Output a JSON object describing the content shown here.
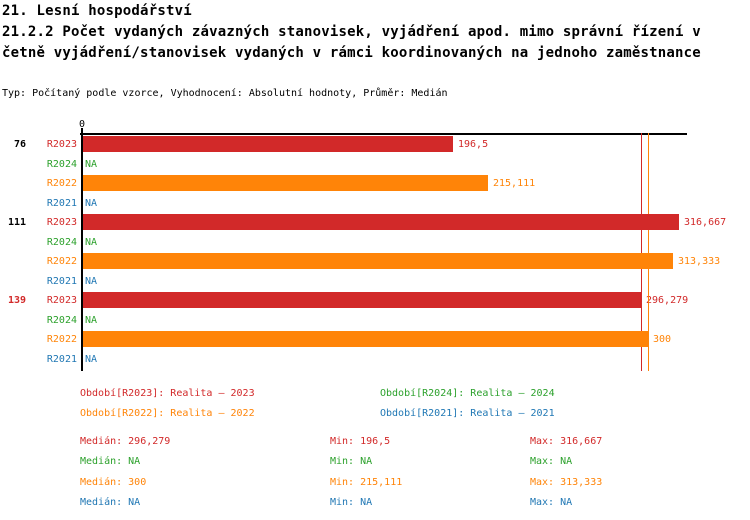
{
  "header": {
    "title_line1": "21. Lesní hospodářství",
    "title_line2": "21.2.2 Počet vydaných závazných stanovisek, vyjádření apod. mimo správní řízení v",
    "title_line3": "četně vyjádření/stanovisek vydaných v rámci koordinovaných na jednoho zaměstnance",
    "subtitle": "Typ: Počítaný podle vzorce, Vyhodnocení: Absolutní hodnoty, Průměr: Medián"
  },
  "chart_data": {
    "type": "bar",
    "orientation": "horizontal",
    "x_axis": {
      "zero_label": "0",
      "min": 0,
      "max": 321,
      "gridlines": false
    },
    "na_label": "NA",
    "series_colors": {
      "R2023": "#d22929",
      "R2024": "#2ca12c",
      "R2022": "#ff8408",
      "R2021": "#1f77b4"
    },
    "groups": [
      {
        "label": "76",
        "label_color": "#000000",
        "rows": [
          {
            "series": "R2023",
            "value": 196.5,
            "value_label": "196,5"
          },
          {
            "series": "R2024",
            "value": null,
            "value_label": "NA"
          },
          {
            "series": "R2022",
            "value": 215.111,
            "value_label": "215,111"
          },
          {
            "series": "R2021",
            "value": null,
            "value_label": "NA"
          }
        ]
      },
      {
        "label": "111",
        "label_color": "#000000",
        "rows": [
          {
            "series": "R2023",
            "value": 316.667,
            "value_label": "316,667"
          },
          {
            "series": "R2024",
            "value": null,
            "value_label": "NA"
          },
          {
            "series": "R2022",
            "value": 313.333,
            "value_label": "313,333"
          },
          {
            "series": "R2021",
            "value": null,
            "value_label": "NA"
          }
        ]
      },
      {
        "label": "139",
        "label_color": "#d22929",
        "rows": [
          {
            "series": "R2023",
            "value": 296.279,
            "value_label": "296,279"
          },
          {
            "series": "R2024",
            "value": null,
            "value_label": "NA"
          },
          {
            "series": "R2022",
            "value": 300,
            "value_label": "300"
          },
          {
            "series": "R2021",
            "value": null,
            "value_label": "NA"
          }
        ]
      }
    ],
    "median_lines": [
      {
        "series": "R2023",
        "value": 296.279
      },
      {
        "series": "R2022",
        "value": 300
      }
    ]
  },
  "legend": {
    "items": [
      {
        "series": "R2023",
        "text": "Období[R2023]: Realita – 2023"
      },
      {
        "series": "R2024",
        "text": "Období[R2024]: Realita – 2024"
      },
      {
        "series": "R2022",
        "text": "Období[R2022]: Realita – 2022"
      },
      {
        "series": "R2021",
        "text": "Období[R2021]: Realita – 2021"
      }
    ]
  },
  "stats": {
    "rows": [
      {
        "series": "R2023",
        "cells": [
          "Medián: 296,279",
          "Min: 196,5",
          "Max: 316,667"
        ]
      },
      {
        "series": "R2024",
        "cells": [
          "Medián: NA",
          "Min: NA",
          "Max: NA"
        ]
      },
      {
        "series": "R2022",
        "cells": [
          "Medián: 300",
          "Min: 215,111",
          "Max: 313,333"
        ]
      },
      {
        "series": "R2021",
        "cells": [
          "Medián: NA",
          "Min: NA",
          "Max: NA"
        ]
      }
    ]
  }
}
